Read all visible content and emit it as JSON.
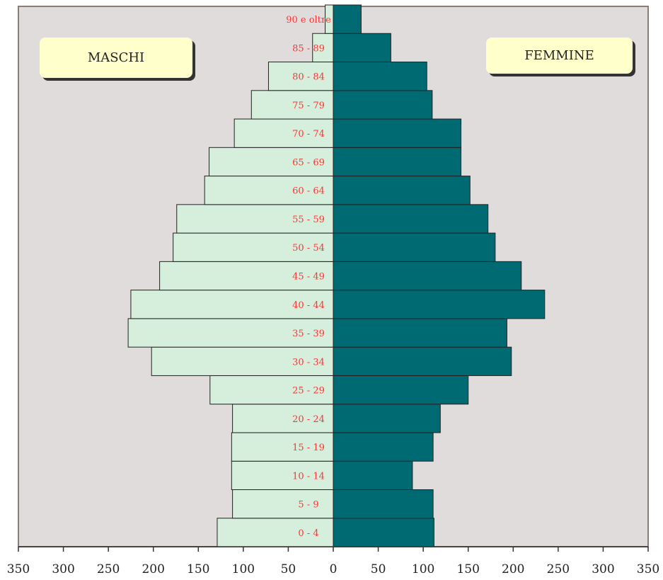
{
  "chart_data": {
    "type": "bar",
    "orientation": "horizontal",
    "layout": "population-pyramid",
    "categories": [
      "0 - 4",
      "5 - 9",
      "10 - 14",
      "15 - 19",
      "20 - 24",
      "25 - 29",
      "30 - 34",
      "35 - 39",
      "40 - 44",
      "45 - 49",
      "50 - 54",
      "55 - 59",
      "60 - 64",
      "65 - 69",
      "70 - 74",
      "75 - 79",
      "80 - 84",
      "85 - 89",
      "90 e oltre"
    ],
    "series": [
      {
        "name": "MASCHI",
        "side": "left",
        "color": "#d6efdc",
        "values": [
          129,
          112,
          113,
          113,
          112,
          137,
          202,
          228,
          225,
          193,
          178,
          174,
          143,
          138,
          110,
          91,
          72,
          23,
          9
        ]
      },
      {
        "name": "FEMMINE",
        "side": "right",
        "color": "#006a73",
        "values": [
          112,
          111,
          88,
          111,
          119,
          150,
          198,
          193,
          235,
          209,
          180,
          172,
          152,
          142,
          142,
          110,
          104,
          64,
          31
        ]
      }
    ],
    "x_ticks": [
      "350",
      "300",
      "250",
      "200",
      "150",
      "100",
      "50",
      "0",
      "50",
      "100",
      "150",
      "200",
      "250",
      "300",
      "350"
    ],
    "xlim": [
      -350,
      350
    ],
    "category_label_color": "#ff3333",
    "plot_background": "#e1dcdc",
    "plot_border_color": "#8a7b73",
    "bar_edge_color": "#222222",
    "grid": false,
    "legend": {
      "left_label": "MASCHI",
      "right_label": "FEMMINE",
      "placement": "top-left and top-right"
    }
  }
}
